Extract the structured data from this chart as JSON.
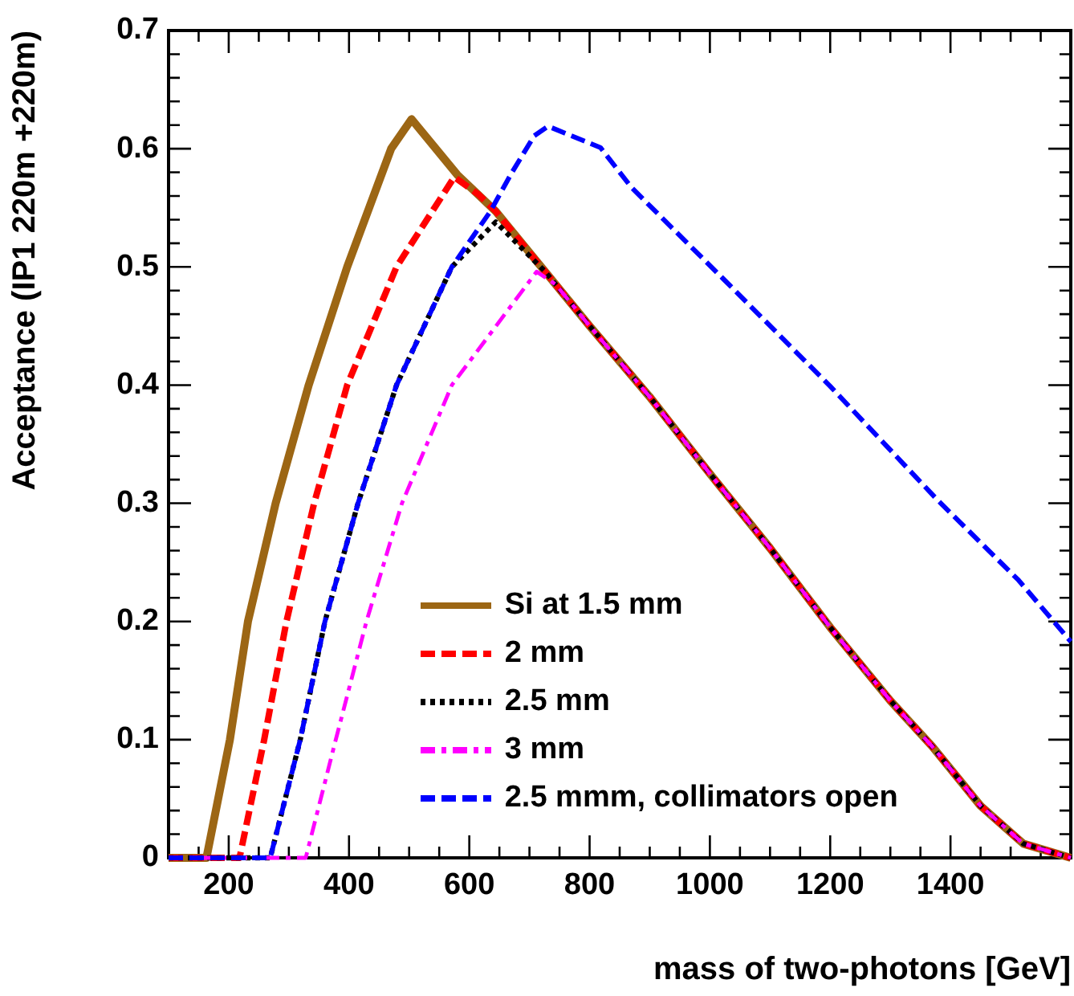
{
  "chart_data": {
    "type": "line",
    "xlabel": "mass of two-photons [GeV]",
    "ylabel": "Acceptance (IP1 220m +220m)",
    "xlim": [
      100,
      1600
    ],
    "ylim": [
      0,
      0.7
    ],
    "xticks": [
      {
        "value": 150,
        "label": null
      },
      200,
      {
        "value": 250,
        "label": null
      },
      {
        "value": 300,
        "label": null
      },
      {
        "value": 350,
        "label": null
      },
      400,
      {
        "value": 450,
        "label": null
      },
      {
        "value": 500,
        "label": null
      },
      {
        "value": 550,
        "label": null
      },
      600,
      {
        "value": 650,
        "label": null
      },
      {
        "value": 700,
        "label": null
      },
      {
        "value": 750,
        "label": null
      },
      800,
      {
        "value": 850,
        "label": null
      },
      {
        "value": 900,
        "label": null
      },
      {
        "value": 950,
        "label": null
      },
      1000,
      {
        "value": 1050,
        "label": null
      },
      {
        "value": 1100,
        "label": null
      },
      {
        "value": 1150,
        "label": null
      },
      1200,
      {
        "value": 1250,
        "label": null
      },
      {
        "value": 1300,
        "label": null
      },
      {
        "value": 1350,
        "label": null
      },
      1400,
      {
        "value": 1450,
        "label": null
      },
      {
        "value": 1500,
        "label": null
      },
      {
        "value": 1550,
        "label": null
      }
    ],
    "yticks": [
      0,
      {
        "value": 0.02,
        "label": null
      },
      {
        "value": 0.04,
        "label": null
      },
      {
        "value": 0.06,
        "label": null
      },
      {
        "value": 0.08,
        "label": null
      },
      0.1,
      {
        "value": 0.12,
        "label": null
      },
      {
        "value": 0.14,
        "label": null
      },
      {
        "value": 0.16,
        "label": null
      },
      {
        "value": 0.18,
        "label": null
      },
      0.2,
      {
        "value": 0.22,
        "label": null
      },
      {
        "value": 0.24,
        "label": null
      },
      {
        "value": 0.26,
        "label": null
      },
      {
        "value": 0.28,
        "label": null
      },
      0.3,
      {
        "value": 0.32,
        "label": null
      },
      {
        "value": 0.34,
        "label": null
      },
      {
        "value": 0.36,
        "label": null
      },
      {
        "value": 0.38,
        "label": null
      },
      0.4,
      {
        "value": 0.42,
        "label": null
      },
      {
        "value": 0.44,
        "label": null
      },
      {
        "value": 0.46,
        "label": null
      },
      {
        "value": 0.48,
        "label": null
      },
      0.5,
      {
        "value": 0.52,
        "label": null
      },
      {
        "value": 0.54,
        "label": null
      },
      {
        "value": 0.56,
        "label": null
      },
      {
        "value": 0.58,
        "label": null
      },
      0.6,
      {
        "value": 0.62,
        "label": null
      },
      {
        "value": 0.64,
        "label": null
      },
      {
        "value": 0.66,
        "label": null
      },
      {
        "value": 0.68,
        "label": null
      },
      0.7
    ],
    "grid": false,
    "legend": "bottom",
    "marker": "none",
    "series": [
      {
        "name": "Si at 1.5 mm",
        "color": "#9c6614",
        "line_style": "solid",
        "x": [
          100,
          163,
          202,
          232,
          278,
          333,
          397,
          470,
          504,
          580,
          644,
          726,
          800,
          900,
          1000,
          1100,
          1200,
          1300,
          1370,
          1450,
          1521,
          1600
        ],
        "values": [
          0,
          0,
          0.1,
          0.2,
          0.3,
          0.4,
          0.5,
          0.6,
          0.625,
          0.578,
          0.547,
          0.496,
          0.45,
          0.39,
          0.325,
          0.262,
          0.195,
          0.133,
          0.094,
          0.044,
          0.012,
          0
        ]
      },
      {
        "name": "2 mm",
        "color": "#ff0000",
        "line_style": "dashed",
        "x": [
          100,
          218,
          259,
          296,
          342,
          397,
          479,
          575,
          616,
          644,
          726,
          800,
          900,
          1000,
          1100,
          1200,
          1300,
          1370,
          1450,
          1521,
          1600
        ],
        "values": [
          0,
          0,
          0.1,
          0.2,
          0.3,
          0.4,
          0.5,
          0.576,
          0.561,
          0.547,
          0.496,
          0.45,
          0.39,
          0.325,
          0.262,
          0.195,
          0.133,
          0.094,
          0.044,
          0.012,
          0
        ]
      },
      {
        "name": "2.5 mm",
        "color": "#000000",
        "line_style": "dotted",
        "x": [
          100,
          269,
          319,
          360,
          415,
          479,
          571,
          644,
          726,
          800,
          900,
          1000,
          1100,
          1200,
          1300,
          1370,
          1450,
          1521,
          1600
        ],
        "values": [
          0,
          0,
          0.1,
          0.2,
          0.3,
          0.4,
          0.5,
          0.538,
          0.496,
          0.45,
          0.39,
          0.325,
          0.262,
          0.195,
          0.133,
          0.094,
          0.044,
          0.012,
          0
        ]
      },
      {
        "name": "3 mm",
        "color": "#ff00ff",
        "line_style": "dashdot",
        "x": [
          100,
          328,
          378,
          429,
          488,
          571,
          712,
          744,
          800,
          900,
          1000,
          1100,
          1200,
          1300,
          1370,
          1450,
          1521,
          1600
        ],
        "values": [
          0,
          0,
          0.1,
          0.2,
          0.3,
          0.4,
          0.496,
          0.485,
          0.45,
          0.39,
          0.325,
          0.262,
          0.195,
          0.133,
          0.094,
          0.044,
          0.012,
          0
        ]
      },
      {
        "name": "2.5 mmm, collimators open",
        "color": "#0000ff",
        "line_style": "dashed",
        "x": [
          100,
          269,
          319,
          360,
          415,
          479,
          571,
          635,
          671,
          708,
          731,
          818,
          870,
          1022,
          1200,
          1378,
          1513,
          1600
        ],
        "values": [
          0,
          0,
          0.1,
          0.2,
          0.3,
          0.4,
          0.5,
          0.547,
          0.58,
          0.611,
          0.619,
          0.601,
          0.567,
          0.49,
          0.399,
          0.303,
          0.235,
          0.183
        ]
      }
    ]
  }
}
